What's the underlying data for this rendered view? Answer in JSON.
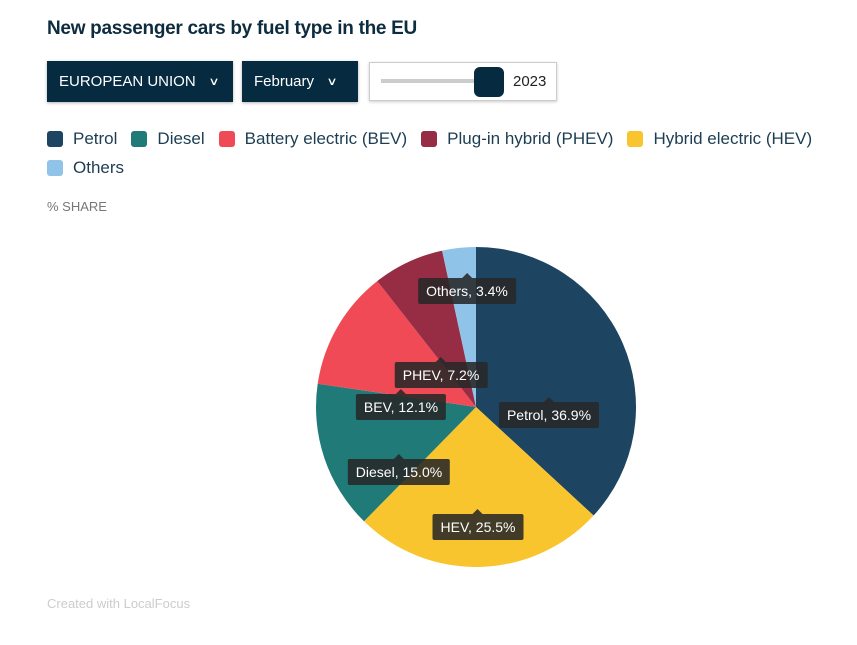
{
  "title": "New passenger cars by fuel type in the EU",
  "controls": {
    "region": "EUROPEAN UNION",
    "month": "February",
    "year": "2023",
    "year_fraction": 1.0
  },
  "unit": "% SHARE",
  "credit": "Created with LocalFocus",
  "legend": [
    {
      "label": "Petrol",
      "color": "#1d4461"
    },
    {
      "label": "Diesel",
      "color": "#1f7a78"
    },
    {
      "label": "Battery electric (BEV)",
      "color": "#ef4a55"
    },
    {
      "label": "Plug-in hybrid (PHEV)",
      "color": "#962d44"
    },
    {
      "label": "Hybrid electric (HEV)",
      "color": "#f9c52f"
    },
    {
      "label": "Others",
      "color": "#8fc4e8"
    }
  ],
  "chart_data": {
    "type": "pie",
    "title": "New passenger cars by fuel type in the EU",
    "slices": [
      {
        "name": "Petrol",
        "value": 36.9,
        "color": "#1d4461",
        "label": "Petrol, 36.9%"
      },
      {
        "name": "HEV",
        "value": 25.5,
        "color": "#f9c52f",
        "label": "HEV, 25.5%"
      },
      {
        "name": "Diesel",
        "value": 15.0,
        "color": "#1f7a78",
        "label": "Diesel, 15.0%"
      },
      {
        "name": "BEV",
        "value": 12.1,
        "color": "#ef4a55",
        "label": "BEV, 12.1%"
      },
      {
        "name": "PHEV",
        "value": 7.2,
        "color": "#962d44",
        "label": "PHEV, 7.2%"
      },
      {
        "name": "Others",
        "value": 3.4,
        "color": "#8fc4e8",
        "label": "Others, 3.4%"
      }
    ]
  }
}
